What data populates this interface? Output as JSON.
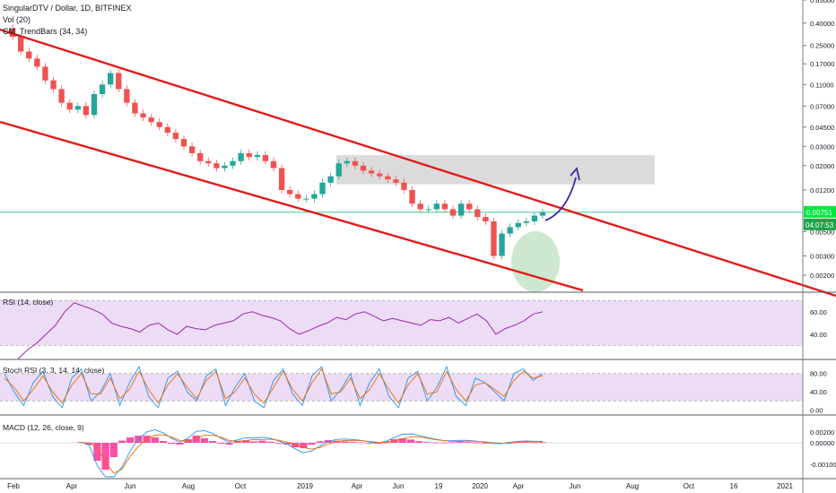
{
  "header": {
    "title": "SingularDTV / Dollar, 1D, BITFINEX",
    "vol": "Vol (20)",
    "trendbars": "CM_TrendBars (34, 34)"
  },
  "colors": {
    "trendline": "#e31b1b",
    "up_candle": "#26a69a",
    "down_candle": "#ef5350",
    "current_price_line": "#26c281",
    "price_badge": "#00e640",
    "rsi_line": "#9c27b0",
    "rsi_band": "#eddcf5",
    "stoch_k": "#2196f3",
    "stoch_d": "#ef6c00",
    "macd_hist": "#ff4ea3",
    "resistance_box": "#c8c8c8",
    "forecast_arrow": "#4527a0",
    "volume_ellipse": "#a5d6a7"
  },
  "chart_data": [
    {
      "type": "line",
      "panel": "price",
      "title": "SingularDTV / Dollar, 1D, BITFINEX",
      "scale": "log",
      "ylim": [
        0.0014,
        0.65
      ],
      "y_ticks": [
        "0.65000",
        "0.40000",
        "0.25000",
        "0.17000",
        "0.11000",
        "0.07000",
        "0.04500",
        "0.03000",
        "0.02000",
        "0.01200",
        "0.00500",
        "0.00300",
        "0.00200"
      ],
      "x_ticks": [
        "Feb",
        "Apr",
        "Jun",
        "Aug",
        "Oct",
        "2019",
        "Apr",
        "Jun",
        "19",
        "2020",
        "Apr",
        "Jun",
        "Aug",
        "Oct",
        "16",
        "2021"
      ],
      "current_price": "0.00751",
      "current_price_secondary": "04:07:53",
      "series": [
        {
          "values": [
            0.36,
            0.3,
            0.22,
            0.19,
            0.16,
            0.12,
            0.1,
            0.075,
            0.065,
            0.07,
            0.058,
            0.09,
            0.11,
            0.14,
            0.1,
            0.075,
            0.06,
            0.055,
            0.05,
            0.045,
            0.04,
            0.035,
            0.03,
            0.026,
            0.022,
            0.021,
            0.019,
            0.02,
            0.022,
            0.026,
            0.024,
            0.025,
            0.022,
            0.019,
            0.012,
            0.011,
            0.01,
            0.01,
            0.011,
            0.014,
            0.016,
            0.021,
            0.022,
            0.02,
            0.018,
            0.017,
            0.016,
            0.015,
            0.014,
            0.012,
            0.009,
            0.008,
            0.008,
            0.009,
            0.008,
            0.007,
            0.009,
            0.008,
            0.0068,
            0.0062,
            0.003,
            0.0048,
            0.0055,
            0.006,
            0.0062,
            0.007,
            0.0075
          ]
        }
      ],
      "annotations": [
        "descending channel trendlines",
        "resistance zone box",
        "projected upward arrow",
        "volume spike ellipse"
      ]
    },
    {
      "type": "line",
      "panel": "rsi",
      "title": "RSI (14, close)",
      "ylim": [
        20,
        75
      ],
      "y_ticks": [
        "60.00",
        "40.00"
      ],
      "bands": [
        30,
        70
      ],
      "values": [
        18,
        26,
        32,
        40,
        48,
        60,
        68,
        65,
        62,
        58,
        50,
        47,
        45,
        42,
        48,
        50,
        44,
        40,
        47,
        45,
        44,
        48,
        50,
        52,
        58,
        60,
        57,
        55,
        52,
        45,
        40,
        43,
        47,
        50,
        55,
        53,
        58,
        60,
        56,
        52,
        54,
        52,
        50,
        48,
        53,
        52,
        55,
        50,
        54,
        58,
        52,
        40,
        45,
        48,
        52,
        58,
        60
      ]
    },
    {
      "type": "line",
      "panel": "stoch_rsi",
      "title": "Stoch RSI (3, 3, 14, 14, close)",
      "ylim": [
        -5,
        105
      ],
      "y_ticks": [
        "80.00",
        "40.00",
        "0.00"
      ],
      "bands": [
        20,
        80
      ],
      "series": [
        {
          "values": [
            80,
            40,
            10,
            60,
            85,
            30,
            5,
            70,
            90,
            20,
            40,
            80,
            10,
            60,
            95,
            30,
            5,
            70,
            85,
            40,
            20,
            75,
            90,
            10,
            50,
            80,
            20,
            5,
            65,
            90,
            35,
            10,
            75,
            95,
            20,
            45,
            80,
            10,
            60,
            90,
            30,
            5,
            70,
            85,
            20,
            50,
            95,
            30,
            10,
            70,
            60,
            40,
            20,
            80,
            90,
            65,
            80
          ]
        },
        {
          "values": [
            70,
            50,
            20,
            45,
            75,
            40,
            15,
            55,
            80,
            35,
            35,
            70,
            25,
            45,
            85,
            45,
            15,
            55,
            80,
            50,
            25,
            65,
            85,
            25,
            40,
            70,
            35,
            15,
            50,
            85,
            45,
            20,
            60,
            90,
            35,
            40,
            70,
            25,
            45,
            80,
            45,
            15,
            55,
            80,
            35,
            40,
            85,
            45,
            20,
            55,
            60,
            45,
            30,
            65,
            85,
            70,
            75
          ]
        }
      ]
    },
    {
      "type": "bar",
      "panel": "macd",
      "title": "MACD (12, 26, close, 9)",
      "ylim": [
        -0.018,
        0.007
      ],
      "y_ticks": [
        "0.00200",
        "0.00000",
        "-0.00100"
      ],
      "histogram": [
        0.0004,
        -0.0012,
        -0.01,
        -0.015,
        -0.008,
        0.0012,
        0.003,
        0.004,
        0.004,
        0.003,
        0.001,
        -0.0006,
        -0.001,
        0.002,
        0.004,
        0.0025,
        0.001,
        -0.0005,
        -0.001,
        0.0012,
        0.0015,
        0.0008,
        0.0012,
        0.0006,
        -0.0004,
        -0.001,
        -0.0025,
        -0.003,
        -0.001,
        0.0008,
        0.0015,
        0.0012,
        0.0008,
        0.0005,
        0.0002,
        -0.0002,
        -0.0005,
        0.0008,
        0.002,
        0.0025,
        0.0018,
        0.0009,
        0.0004,
        0.0002,
        0.0001,
        0.0003,
        0.0006,
        0.0004,
        0.0001,
        -0.0003,
        -0.0004,
        -0.0002,
        0.0004,
        0.0006,
        0.0004,
        0.0002,
        0.0003
      ]
    }
  ]
}
